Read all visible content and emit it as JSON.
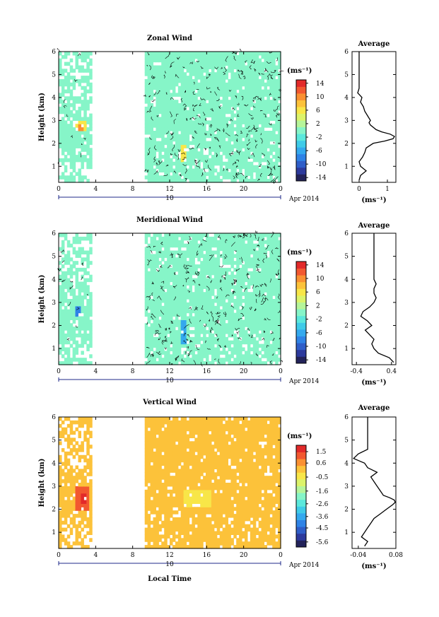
{
  "figure": {
    "date_label": "Apr 2014",
    "xlabel": "Local Time",
    "day_label": "10"
  },
  "chart_data": [
    {
      "type": "heatmap",
      "title": "Zonal Wind",
      "ylabel": "Height (km)",
      "xlim": [
        0,
        24
      ],
      "ylim": [
        0.3,
        6
      ],
      "x_tick_labels": [
        "0",
        "4",
        "8",
        "12",
        "16",
        "20",
        "0"
      ],
      "y_tick_labels": [
        "1",
        "2",
        "3",
        "4",
        "5",
        "6"
      ],
      "background_value": 0,
      "colorbar": {
        "unit": "(ms⁻¹)",
        "min": -15,
        "max": 15,
        "ticks": [
          "14",
          "10",
          "6",
          "2",
          "-2",
          "-6",
          "-10",
          "-14"
        ],
        "colors": [
          "#23235a",
          "#2d3a9c",
          "#2f5ec8",
          "#2f83e6",
          "#34a9ee",
          "#3fcbe8",
          "#5be8dc",
          "#86f5c8",
          "#b6f59a",
          "#dcf36a",
          "#f8e648",
          "#fcc23a",
          "#fa9032",
          "#f25830",
          "#e22a2a"
        ]
      },
      "patches": [
        {
          "time_range": [
            1.7,
            2.7
          ],
          "height_range": [
            2.4,
            2.9
          ],
          "value": 6
        },
        {
          "time_range": [
            2.1,
            2.5
          ],
          "height_range": [
            2.5,
            2.7
          ],
          "value": 10
        },
        {
          "time_range": [
            13.0,
            13.6
          ],
          "height_range": [
            1.1,
            1.8
          ],
          "value": 5
        }
      ],
      "average_profile": {
        "title": "Average",
        "xlim": [
          -0.25,
          1.3
        ],
        "x_tick_labels": [
          "0",
          "1"
        ],
        "xlabel": "(ms⁻¹)",
        "height": [
          0.4,
          0.6,
          0.8,
          1.0,
          1.2,
          1.4,
          1.6,
          1.8,
          2.0,
          2.1,
          2.2,
          2.3,
          2.4,
          2.5,
          2.6,
          2.7,
          2.8,
          2.9,
          3.0,
          3.2,
          3.4,
          3.6,
          3.8,
          4.0,
          4.2,
          4.4,
          4.6,
          5.0,
          5.5,
          6.0
        ],
        "value": [
          0.0,
          0.05,
          0.25,
          0.05,
          0.0,
          0.12,
          0.2,
          0.25,
          0.5,
          0.9,
          1.2,
          1.25,
          1.1,
          0.8,
          0.6,
          0.5,
          0.4,
          0.35,
          0.4,
          0.3,
          0.2,
          0.15,
          0.05,
          0.1,
          -0.05,
          0.0,
          0.0,
          0.0,
          0.0,
          0.0
        ]
      }
    },
    {
      "type": "heatmap",
      "title": "Meridional Wind",
      "ylabel": "Height (km)",
      "xlim": [
        0,
        24
      ],
      "ylim": [
        0.3,
        6
      ],
      "x_tick_labels": [
        "0",
        "4",
        "8",
        "12",
        "16",
        "20",
        "0"
      ],
      "y_tick_labels": [
        "1",
        "2",
        "3",
        "4",
        "5",
        "6"
      ],
      "background_value": 0,
      "colorbar": {
        "unit": "(ms⁻¹)",
        "min": -15,
        "max": 15,
        "ticks": [
          "14",
          "10",
          "6",
          "2",
          "-2",
          "-6",
          "-10",
          "-14"
        ],
        "colors": [
          "#23235a",
          "#2d3a9c",
          "#2f5ec8",
          "#2f83e6",
          "#34a9ee",
          "#3fcbe8",
          "#5be8dc",
          "#86f5c8",
          "#b6f59a",
          "#dcf36a",
          "#f8e648",
          "#fcc23a",
          "#fa9032",
          "#f25830",
          "#e22a2a"
        ]
      },
      "patches": [
        {
          "time_range": [
            1.6,
            2.3
          ],
          "height_range": [
            2.3,
            2.7
          ],
          "value": -8
        },
        {
          "time_range": [
            13.2,
            13.6
          ],
          "height_range": [
            1.2,
            2.2
          ],
          "value": -6
        }
      ],
      "average_profile": {
        "title": "Average",
        "xlim": [
          -0.5,
          0.5
        ],
        "x_tick_labels": [
          "-0.4",
          "0.4"
        ],
        "xlabel": "(ms⁻¹)",
        "height": [
          0.4,
          0.6,
          0.8,
          1.0,
          1.2,
          1.4,
          1.6,
          1.8,
          2.0,
          2.2,
          2.4,
          2.6,
          2.8,
          3.0,
          3.2,
          3.4,
          3.6,
          3.8,
          4.0,
          4.5,
          5.0,
          5.5,
          6.0
        ],
        "value": [
          0.45,
          0.35,
          0.1,
          0.0,
          -0.05,
          0.0,
          -0.1,
          -0.2,
          -0.05,
          -0.15,
          -0.3,
          -0.25,
          -0.1,
          0.0,
          0.05,
          0.0,
          0.0,
          0.05,
          0.0,
          0.0,
          0.0,
          0.0,
          0.0
        ]
      }
    },
    {
      "type": "heatmap",
      "title": "Vertical Wind",
      "ylabel": "Height (km)",
      "xlim": [
        0,
        24
      ],
      "ylim": [
        0.3,
        6
      ],
      "x_tick_labels": [
        "0",
        "4",
        "8",
        "12",
        "16",
        "20",
        "0"
      ],
      "y_tick_labels": [
        "1",
        "2",
        "3",
        "4",
        "5",
        "6"
      ],
      "background_value": 0.3,
      "colorbar": {
        "unit": "(ms⁻¹)",
        "min": -6.0,
        "max": 2.0,
        "ticks": [
          "1.5",
          "0.6",
          "-0.5",
          "-1.6",
          "-2.6",
          "-3.6",
          "-4.5",
          "-5.6"
        ],
        "colors": [
          "#23235a",
          "#2d3a9c",
          "#2f5ec8",
          "#2f83e6",
          "#34a9ee",
          "#3fcbe8",
          "#5be8dc",
          "#86f5c8",
          "#b6f59a",
          "#dcf36a",
          "#f8e648",
          "#fcc23a",
          "#fa9032",
          "#f25830",
          "#e22a2a"
        ]
      },
      "patches": [
        {
          "time_range": [
            1.8,
            3.0
          ],
          "height_range": [
            1.9,
            2.9
          ],
          "value": 1.1
        },
        {
          "time_range": [
            2.2,
            2.8
          ],
          "height_range": [
            2.1,
            2.6
          ],
          "value": 1.7
        },
        {
          "time_range": [
            13.5,
            16.5
          ],
          "height_range": [
            2.0,
            2.8
          ],
          "value": -0.2
        }
      ],
      "average_profile": {
        "title": "Average",
        "xlim": [
          -0.06,
          0.08
        ],
        "x_tick_labels": [
          "-0.04",
          "0.08"
        ],
        "xlabel": "(ms⁻¹)",
        "height": [
          0.4,
          0.6,
          0.8,
          1.0,
          1.2,
          1.4,
          1.6,
          1.8,
          2.0,
          2.2,
          2.3,
          2.4,
          2.5,
          2.6,
          2.8,
          3.0,
          3.2,
          3.4,
          3.6,
          3.8,
          4.0,
          4.2,
          4.4,
          4.6,
          5.0,
          5.5,
          6.0
        ],
        "value": [
          -0.02,
          -0.01,
          -0.03,
          -0.02,
          -0.01,
          0.0,
          0.01,
          0.03,
          0.05,
          0.07,
          0.078,
          0.075,
          0.06,
          0.04,
          0.03,
          0.02,
          0.01,
          0.0,
          0.02,
          -0.01,
          -0.02,
          -0.055,
          -0.04,
          -0.01,
          -0.01,
          -0.01,
          -0.01
        ]
      }
    }
  ]
}
